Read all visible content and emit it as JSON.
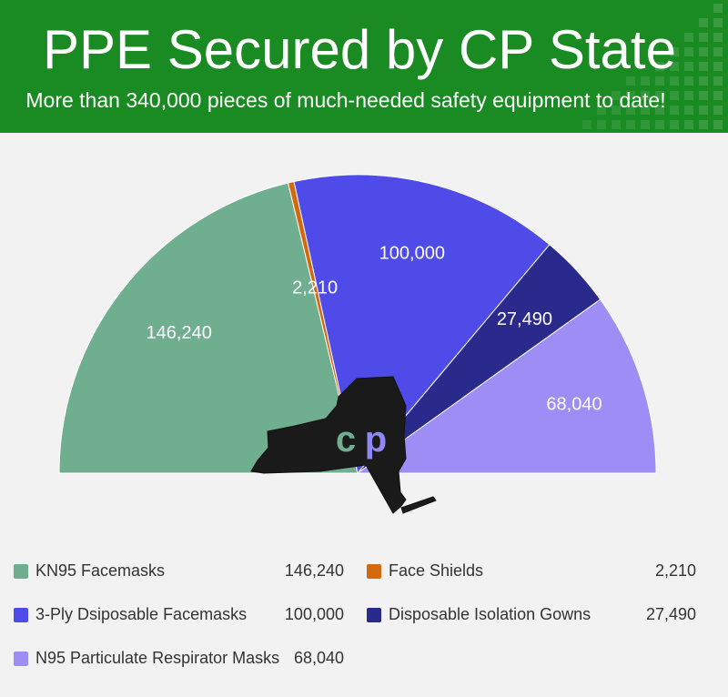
{
  "header": {
    "title": "PPE Secured by CP State",
    "subtitle": "More than 340,000 pieces of much-needed safety equipment to date!",
    "bg_color": "#1a8a22"
  },
  "logo": {
    "text": "cp",
    "shape": "new-york-state-silhouette",
    "color": "#1a1a1a"
  },
  "chart_data": {
    "type": "pie",
    "style": "half-donut",
    "title": "PPE Secured by CP State",
    "categories": [
      "KN95 Facemasks",
      "Face Shields",
      "3-Ply Dsiposable Facemasks",
      "Disposable Isolation Gowns",
      "N95 Particulate Respirator Masks"
    ],
    "values": [
      146240,
      2210,
      100000,
      27490,
      68040
    ],
    "value_labels": [
      "146,240",
      "2,210",
      "100,000",
      "27,490",
      "68,040"
    ],
    "colors": [
      "#6fae8f",
      "#d2690e",
      "#4f4be8",
      "#2a2a8c",
      "#9d8df5"
    ],
    "legend_position": "bottom"
  }
}
